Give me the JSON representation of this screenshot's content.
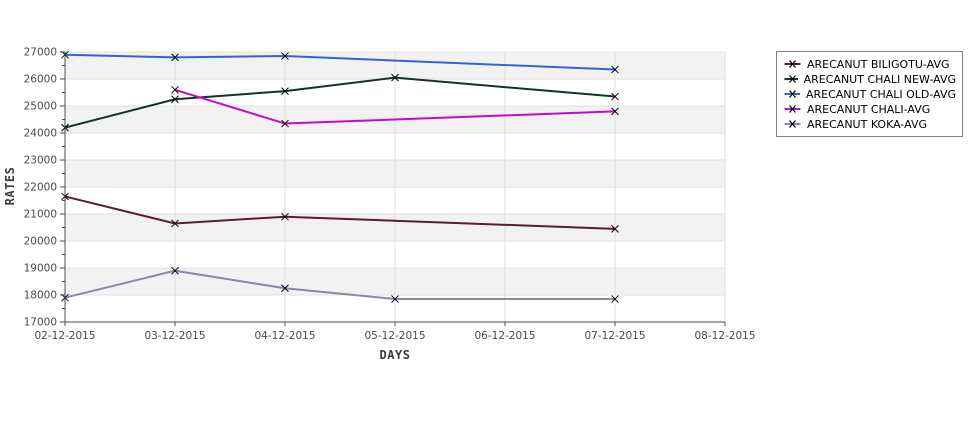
{
  "chart_data": {
    "type": "line",
    "title": "",
    "xlabel": "DAYS",
    "ylabel": "RATES",
    "x_categories": [
      "02-12-2015",
      "03-12-2015",
      "04-12-2015",
      "05-12-2015",
      "06-12-2015",
      "07-12-2015",
      "08-12-2015"
    ],
    "y_tick_labels": [
      "17000",
      "18000",
      "19000",
      "20000",
      "21000",
      "22000",
      "23000",
      "24000",
      "25000",
      "26000",
      "27000"
    ],
    "ylim": [
      17000,
      27000
    ],
    "y_tick_step": 1000,
    "y_minor_tick_step": 500,
    "grid": true,
    "plot_alternating_bands": true,
    "marker": "x",
    "legend_position": "outside-right-top",
    "series": [
      {
        "name": "ARECANUT BILIGOTU-AVG",
        "color": "#5a1c36",
        "points": [
          {
            "x": "02-12-2015",
            "y": 21650
          },
          {
            "x": "03-12-2015",
            "y": 20650
          },
          {
            "x": "04-12-2015",
            "y": 20900
          },
          {
            "x": "07-12-2015",
            "y": 20450
          }
        ]
      },
      {
        "name": "ARECANUT CHALI NEW-AVG",
        "color": "#16302b",
        "points": [
          {
            "x": "02-12-2015",
            "y": 24200
          },
          {
            "x": "03-12-2015",
            "y": 25250
          },
          {
            "x": "04-12-2015",
            "y": 25550
          },
          {
            "x": "05-12-2015",
            "y": 26050
          },
          {
            "x": "07-12-2015",
            "y": 25350
          }
        ]
      },
      {
        "name": "ARECANUT CHALI OLD-AVG",
        "color": "#2d66db",
        "points": [
          {
            "x": "02-12-2015",
            "y": 26900
          },
          {
            "x": "03-12-2015",
            "y": 26800
          },
          {
            "x": "04-12-2015",
            "y": 26850
          },
          {
            "x": "07-12-2015",
            "y": 26350
          }
        ]
      },
      {
        "name": "ARECANUT CHALI-AVG",
        "color": "#c50bc9",
        "points": [
          {
            "x": "03-12-2015",
            "y": 25600
          },
          {
            "x": "04-12-2015",
            "y": 24350
          },
          {
            "x": "07-12-2015",
            "y": 24800
          }
        ]
      },
      {
        "name": "ARECANUT KOKA-AVG",
        "color": "#9184a8",
        "points": [
          {
            "x": "02-12-2015",
            "y": 17900
          },
          {
            "x": "03-12-2015",
            "y": 18900
          },
          {
            "x": "04-12-2015",
            "y": 18250
          },
          {
            "x": "05-12-2015",
            "y": 17850
          },
          {
            "x": "07-12-2015",
            "y": 17850
          }
        ]
      }
    ],
    "style": {
      "band_fill": "#f2f2f2",
      "grid_color": "#e0e0e0",
      "axis_color": "#4d4d4d",
      "tick_label_color": "#4a4a4a",
      "marker_color": "#000000"
    }
  }
}
